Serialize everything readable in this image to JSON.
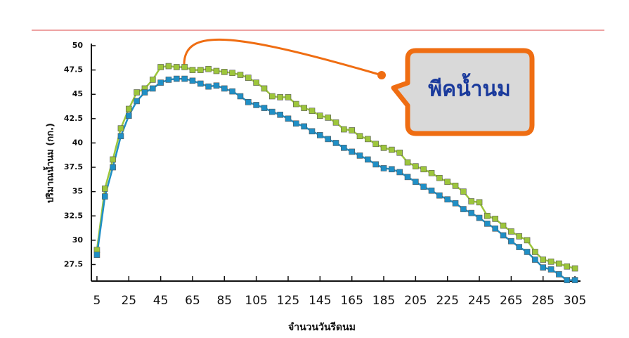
{
  "chart_data": {
    "type": "line",
    "y_label": "ปริมาณน้ำนม (กก.)",
    "x_label": "จำนวนวันรีดนม",
    "annotation": "พีคน้ำนม",
    "x": [
      5,
      10,
      15,
      20,
      25,
      30,
      35,
      40,
      45,
      50,
      55,
      60,
      65,
      70,
      75,
      80,
      85,
      90,
      95,
      100,
      105,
      110,
      115,
      120,
      125,
      130,
      135,
      140,
      145,
      150,
      155,
      160,
      165,
      170,
      175,
      180,
      185,
      190,
      195,
      200,
      205,
      210,
      215,
      220,
      225,
      230,
      235,
      240,
      245,
      250,
      255,
      260,
      265,
      270,
      275,
      280,
      285,
      290,
      295,
      300,
      305
    ],
    "series": [
      {
        "color": "#9dc63b",
        "values": [
          29,
          35.3,
          38.3,
          41.5,
          43.5,
          45.2,
          45.6,
          46.5,
          47.8,
          47.9,
          47.8,
          47.8,
          47.5,
          47.5,
          47.6,
          47.4,
          47.3,
          47.2,
          47.0,
          46.7,
          46.2,
          45.6,
          44.8,
          44.7,
          44.7,
          44.0,
          43.6,
          43.3,
          42.8,
          42.6,
          42.1,
          41.4,
          41.3,
          40.7,
          40.4,
          39.9,
          39.5,
          39.3,
          39.0,
          38.0,
          37.6,
          37.3,
          36.9,
          36.4,
          36.0,
          35.6,
          35.0,
          34.0,
          33.9,
          32.5,
          32.2,
          31.5,
          30.9,
          30.4,
          30.0,
          28.8,
          28.0,
          27.8,
          27.6,
          27.3,
          27.1
        ]
      },
      {
        "color": "#1f8fc6",
        "values": [
          28.5,
          34.5,
          37.5,
          40.7,
          42.8,
          44.3,
          45.2,
          45.6,
          46.2,
          46.5,
          46.6,
          46.6,
          46.4,
          46.1,
          45.8,
          45.9,
          45.6,
          45.3,
          44.8,
          44.2,
          43.9,
          43.6,
          43.2,
          42.9,
          42.5,
          42.0,
          41.7,
          41.2,
          40.8,
          40.4,
          40.0,
          39.5,
          39.1,
          38.7,
          38.3,
          37.8,
          37.4,
          37.3,
          37.0,
          36.5,
          36.0,
          35.5,
          35.1,
          34.6,
          34.2,
          33.8,
          33.2,
          32.8,
          32.3,
          31.7,
          31.2,
          30.5,
          29.9,
          29.3,
          28.8,
          28.0,
          27.2,
          27.0,
          26.5,
          25.9,
          25.9
        ]
      }
    ],
    "xlim": [
      1.5,
      308.5
    ],
    "xticks": [
      5,
      25,
      45,
      65,
      85,
      105,
      125,
      145,
      165,
      185,
      205,
      225,
      245,
      265,
      285,
      305
    ],
    "ylim": [
      25.8,
      50
    ],
    "yticks": [
      27.5,
      30,
      32.5,
      35,
      37.5,
      40,
      42.5,
      45,
      47.5,
      50
    ]
  }
}
